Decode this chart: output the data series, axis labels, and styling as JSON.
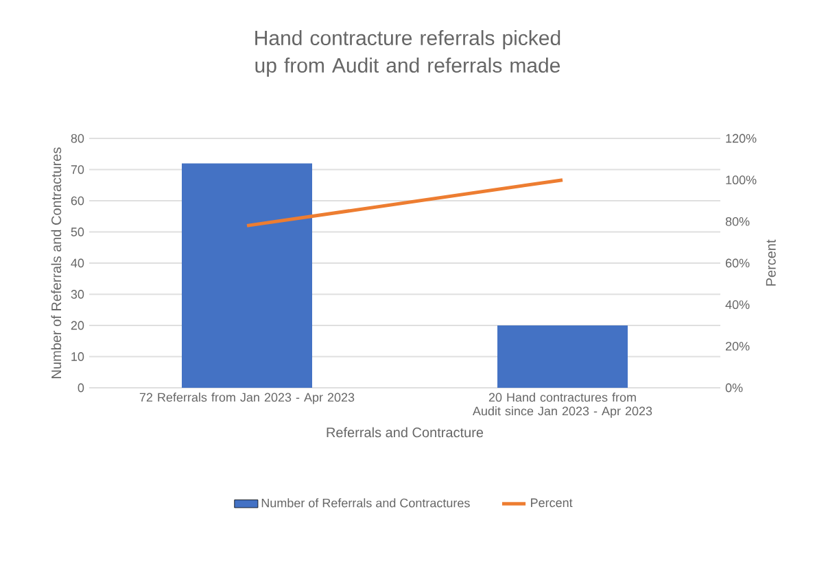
{
  "chart_data": {
    "type": "bar",
    "title": "Hand contracture referrals picked up from Audit and referrals made",
    "xlabel": "Referrals and Contracture",
    "ylabel": "Number of Referrals and Contractures",
    "y2label": "Percent",
    "categories": [
      "72 Referrals from Jan 2023 - Apr 2023",
      "20 Hand contractures from Audit since Jan 2023 - Apr 2023"
    ],
    "series": [
      {
        "name": "Number of Referrals and Contractures",
        "color": "#4472c4",
        "values": [
          72,
          20
        ]
      },
      {
        "name": "Percent",
        "type": "line",
        "axis": "y2",
        "color": "#ed7d31",
        "values": [
          78,
          100
        ]
      }
    ],
    "ylim": [
      0,
      80
    ],
    "yticks": [
      0,
      10,
      20,
      30,
      40,
      50,
      60,
      70,
      80
    ],
    "y2lim": [
      0,
      120
    ],
    "y2ticks": [
      {
        "value": 0,
        "label": "0%"
      },
      {
        "value": 20,
        "label": "20%"
      },
      {
        "value": 40,
        "label": "40%"
      },
      {
        "value": 60,
        "label": "60%"
      },
      {
        "value": 80,
        "label": "80%"
      },
      {
        "value": 100,
        "label": "100%"
      },
      {
        "value": 120,
        "label": "120%"
      }
    ],
    "grid": "y",
    "legend": "bottom",
    "marker": "none"
  }
}
